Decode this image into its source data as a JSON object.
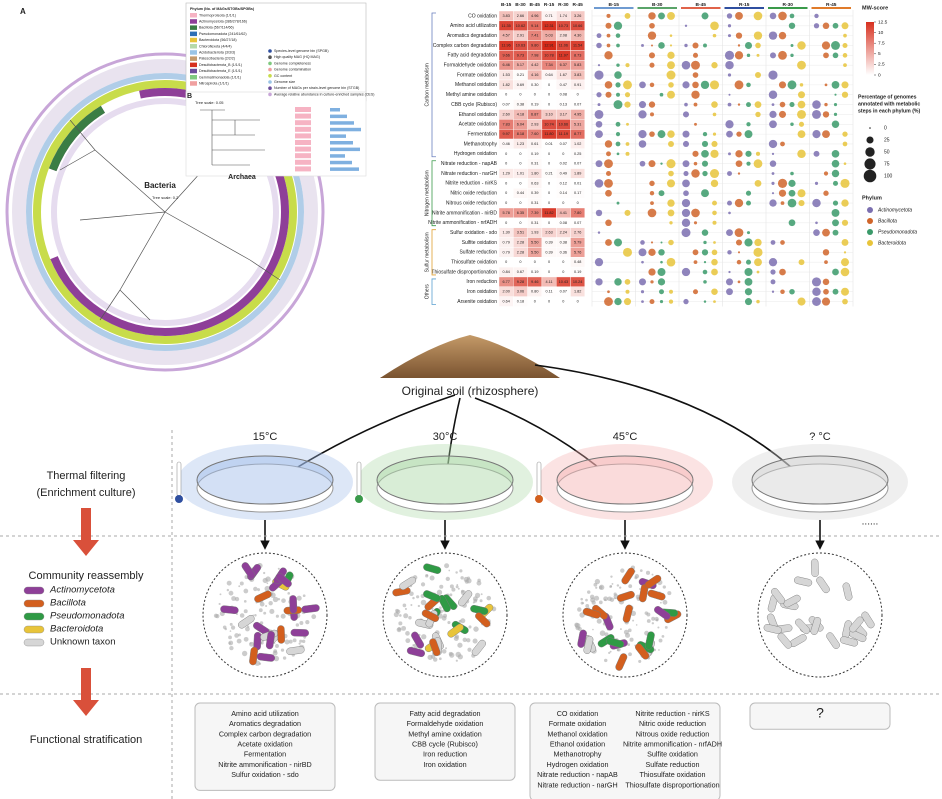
{
  "panel_a": {
    "label": "A",
    "legend_title": "Phylum (No. of MAGs/STGBs/SPGBs)",
    "phyla": [
      {
        "name": "Thermoproteota (1/1/1)",
        "color": "#f6b3c3"
      },
      {
        "name": "Actinomycetota (386/278/166)",
        "color": "#8e3f98"
      },
      {
        "name": "Bacillota (567/114/66)",
        "color": "#3a7d44"
      },
      {
        "name": "Pseudomonadota (241/61/62)",
        "color": "#2f6fb5"
      },
      {
        "name": "Bacteroidota (56/27/18)",
        "color": "#e8c43a"
      },
      {
        "name": "Chloroflexota (4/4/4)",
        "color": "#b7d9a8"
      },
      {
        "name": "Acidobacteriota (3/3/3)",
        "color": "#9ac4e6"
      },
      {
        "name": "Patescibacteria (2/2/2)",
        "color": "#c49a6c"
      },
      {
        "name": "Desulfobacterota_B (1/1/1)",
        "color": "#d7301f"
      },
      {
        "name": "Desulfobacterota_E (1/1/1)",
        "color": "#6b4c9a"
      },
      {
        "name": "Gemmatimonadota (1/1/1)",
        "color": "#7fc97f"
      },
      {
        "name": "Nitrospirota (1/1/1)",
        "color": "#f0a0a0"
      }
    ],
    "features": [
      "Species-level genome bin (SPGB)",
      "High quality MAG (HQ MAG)",
      "Genome completeness",
      "Genome contamination",
      "GC content",
      "Genome size",
      "Number of MAGs per strain-level genome bin (STGB)",
      "Average relative abundance in culture-enriched samples (CES)"
    ],
    "bacteria_label": "Bacteria",
    "tree_scale": "Tree scale: 0.2"
  },
  "panel_b": {
    "label": "B",
    "tree_scale": "Tree scale: 0.05",
    "archaea_label": "Archaea"
  },
  "heatmap": {
    "columns": [
      {
        "name": "B-15",
        "color": "#6f9bd1"
      },
      {
        "name": "B-30",
        "color": "#5aa469"
      },
      {
        "name": "B-45",
        "color": "#e0634a"
      },
      {
        "name": "R-15",
        "color": "#2f4fa0"
      },
      {
        "name": "R-30",
        "color": "#3a9a4a"
      },
      {
        "name": "R-45",
        "color": "#e07b2a"
      }
    ],
    "low_color": "#ffffff",
    "high_color": "#d7301f",
    "groups": [
      {
        "name": "Carbon metabolism",
        "color": "#6a7fbf",
        "rows": [
          {
            "label": "CO oxidation",
            "values": [
              3.83,
              2.66,
              4.96,
              0.71,
              1.74,
              3.26
            ]
          },
          {
            "label": "Amino acid utilization",
            "values": [
              11.35,
              10.62,
              9.14,
              12.31,
              10.73,
              10.66
            ]
          },
          {
            "label": "Aromatics degradation",
            "values": [
              4.57,
              2.91,
              7.41,
              5.03,
              2.08,
              4.3
            ],
            "value_labels": [
              "4.57",
              "2.91",
              "7.41",
              "5.03",
              "2.08",
              "4.30"
            ]
          },
          {
            "label": "Complex carbon degradation",
            "values": [
              11.96,
              10.63,
              9.8,
              12.91,
              11.06,
              11.54
            ],
            "value_labels": [
              "11.96",
              "10.63",
              "9.80",
              "12.91",
              "11.06",
              "11.54"
            ]
          },
          {
            "label": "Fatty acid degradation",
            "values": [
              9.66,
              9.73,
              7.98,
              10.78,
              11.97,
              8.73
            ]
          },
          {
            "label": "Formaldehyde oxidation",
            "values": [
              6.46,
              5.17,
              4.42,
              7.34,
              6.37,
              5.83
            ]
          },
          {
            "label": "Formate oxidation",
            "values": [
              1.53,
              0.21,
              4.16,
              0.64,
              1.67,
              3.83
            ]
          },
          {
            "label": "Methanol oxidation",
            "values": [
              1.82,
              0.69,
              0.3,
              0,
              0.47,
              0.91
            ],
            "value_labels": [
              "1.82",
              "0.69",
              "0.30",
              "0",
              "0.47",
              "0.91"
            ]
          },
          {
            "label": "Methyl amine oxidation",
            "values": [
              0,
              0,
              0,
              0,
              0.08,
              0
            ]
          },
          {
            "label": "CBB cycle (Rubisco)",
            "values": [
              0.07,
              0.38,
              0.19,
              0,
              0.13,
              0.07
            ]
          },
          {
            "label": "Ethanol oxidation",
            "values": [
              2.6,
              4.18,
              6.87,
              3.1,
              3.17,
              4.95
            ],
            "value_labels": [
              "2.60",
              "4.18",
              "6.87",
              "3.10",
              "3.17",
              "4.95"
            ]
          },
          {
            "label": "Acetate oxidation",
            "values": [
              7.83,
              6.04,
              2.93,
              10.74,
              10.66,
              5.31
            ]
          },
          {
            "label": "Fermentation",
            "values": [
              9.97,
              8.18,
              7.6,
              11.8,
              11.19,
              8.77
            ],
            "value_labels": [
              "9.97",
              "8.18",
              "7.60",
              "11.80",
              "11.19",
              "8.77"
            ]
          },
          {
            "label": "Methanotrophy",
            "values": [
              0.46,
              1.23,
              0.61,
              0.01,
              0.07,
              1.02
            ]
          },
          {
            "label": "Hydrogen oxidation",
            "values": [
              0,
              0,
              0.19,
              0,
              0,
              0.25
            ]
          }
        ]
      },
      {
        "name": "Nitrogen metabolism",
        "color": "#3a9a4a",
        "rows": [
          {
            "label": "Nitrate reduction - napAB",
            "values": [
              0,
              0,
              0.31,
              0,
              0.02,
              0.07
            ]
          },
          {
            "label": "Nitrate reduction - narGH",
            "values": [
              1.29,
              1.01,
              1.8,
              0.21,
              0.49,
              1.89
            ],
            "value_labels": [
              "1.29",
              "1.01",
              "1.80",
              "0.21",
              "0.49",
              "1.89"
            ]
          },
          {
            "label": "Nitrite reduction - nirKS",
            "values": [
              0,
              0,
              0.63,
              0,
              0.12,
              0.01
            ]
          },
          {
            "label": "Nitric oxide reduction",
            "values": [
              0,
              0.44,
              0.39,
              0,
              0.14,
              0.17
            ]
          },
          {
            "label": "Nitrous oxide reduction",
            "values": [
              0,
              0,
              0.31,
              0,
              0,
              0
            ]
          },
          {
            "label": "Nitrite ammonification - nirBD",
            "values": [
              5.78,
              6.35,
              7.39,
              11.82,
              4.41,
              7.8
            ],
            "value_labels": [
              "5.78",
              "6.35",
              "7.39",
              "11.82",
              "4.41",
              "7.80"
            ]
          },
          {
            "label": "Nitrite ammonification - nrfADH",
            "values": [
              0,
              0,
              0.31,
              0,
              0.08,
              0.07
            ]
          }
        ]
      },
      {
        "name": "Sulfur metabolism",
        "color": "#e0a030",
        "rows": [
          {
            "label": "Sulfur oxidation - sdo",
            "values": [
              1.3,
              3.51,
              1.93,
              2.63,
              2.24,
              2.76
            ],
            "value_labels": [
              "1.30",
              "3.51",
              "1.93",
              "2.63",
              "2.24",
              "2.76"
            ]
          },
          {
            "label": "Sulfite oxidation",
            "values": [
              0.79,
              2.28,
              5.5,
              0.39,
              0.38,
              5.79
            ],
            "value_labels": [
              "0.79",
              "2.28",
              "5.50",
              "0.39",
              "0.38",
              "5.79"
            ]
          },
          {
            "label": "Sulfate reduction",
            "values": [
              0.79,
              2.28,
              5.5,
              0.39,
              0.36,
              5.76
            ],
            "value_labels": [
              "0.79",
              "2.28",
              "5.50",
              "0.39",
              "0.36",
              "5.76"
            ]
          },
          {
            "label": "Thiosulfate oxidation",
            "values": [
              0,
              0,
              0,
              0,
              0,
              0.48
            ]
          },
          {
            "label": "Thiosulfate disproportionation",
            "values": [
              0.84,
              0.67,
              0.19,
              0,
              0,
              0.19
            ]
          }
        ]
      },
      {
        "name": "Others",
        "color": "#5aa0d0",
        "rows": [
          {
            "label": "Iron reduction",
            "values": [
              6.77,
              9.28,
              9.46,
              4.11,
              10.43,
              10.24
            ]
          },
          {
            "label": "Iron oxidation",
            "values": [
              2,
              3.06,
              0.8,
              0.11,
              0.07,
              1.82
            ],
            "value_labels": [
              "2.00",
              "3.06",
              "0.80",
              "0.11",
              "0.07",
              "1.82"
            ]
          },
          {
            "label": "Arsenite oxidation",
            "values": [
              0.64,
              0.18,
              0,
              0,
              0,
              0
            ]
          }
        ]
      }
    ],
    "color_scale": {
      "title": "MW-score",
      "lim": [
        0,
        12.5
      ],
      "ticks": [
        12.5,
        10,
        7.5,
        5,
        2.5,
        0
      ]
    },
    "size_legend": {
      "title_lines": [
        "Percentage of genomes",
        "annotated with metabolic",
        "steps in each phylum (%)"
      ],
      "ticks": [
        0,
        25,
        50,
        75,
        100
      ]
    },
    "phylum_legend": {
      "title": "Phylum",
      "entries": [
        {
          "name": "Actinomycetota",
          "color": "#7b6fb0"
        },
        {
          "name": "Bacillota",
          "color": "#d0652a"
        },
        {
          "name": "Pseudomonadota",
          "color": "#3a9a6a"
        },
        {
          "name": "Bacteroidota",
          "color": "#e8c43a"
        }
      ]
    }
  },
  "workflow": {
    "source": "Original soil (rhizosphere)",
    "stages": [
      {
        "lines": [
          "Thermal filtering",
          "(Enrichment culture)"
        ]
      },
      {
        "lines": [
          "Community reassembly"
        ]
      },
      {
        "lines": [
          "Functional stratification"
        ]
      }
    ],
    "legend": [
      {
        "name": "Actinomycetota",
        "color": "#8e3f98"
      },
      {
        "name": "Bacillota",
        "color": "#d35f1e"
      },
      {
        "name": "Pseudomonadota",
        "color": "#2f9a45"
      },
      {
        "name": "Bacteroidota",
        "color": "#e8c43a"
      },
      {
        "name": "Unknown taxon",
        "color": "#d6d6d6"
      }
    ],
    "conditions": [
      {
        "temperature": "15°C",
        "color": "#9dbbe8",
        "functions": [
          [
            "Amino acid utilization",
            "Aromatics degradation",
            "Complex carbon degradation",
            "Acetate oxidation",
            "Fermentation",
            "Nitrite ammonification - nirBD",
            "Sulfur oxidation - sdo"
          ]
        ]
      },
      {
        "temperature": "30°C",
        "color": "#a9d8a4",
        "functions": [
          [
            "Fatty acid degradation",
            "Formaldehyde oxidation",
            "Methyl amine oxidation",
            "CBB cycle (Rubisco)",
            "Iron reduction",
            "Iron oxidation"
          ]
        ]
      },
      {
        "temperature": "45°C",
        "color": "#f4b0b0",
        "functions": [
          [
            "CO oxidation",
            "Formate oxidation",
            "Methanol oxidation",
            "Ethanol oxidation",
            "Methanotrophy",
            "Hydrogen oxidation",
            "Nitrate reduction - napAB",
            "Nitrate reduction - narGH"
          ],
          [
            "Nitrite reduction - nirKS",
            "Nitric oxide reduction",
            "Nitrous oxide reduction",
            "Nitrite ammonification - nrfADH",
            "Sulfite oxidation",
            "Sulfate reduction",
            "Thiosulfate oxidation",
            "Thiosulfate disproportionation"
          ]
        ]
      },
      {
        "temperature": "? °C",
        "color": "#d0d0d0",
        "functions": [
          [
            "?"
          ]
        ]
      }
    ],
    "ellipsis": "......"
  }
}
